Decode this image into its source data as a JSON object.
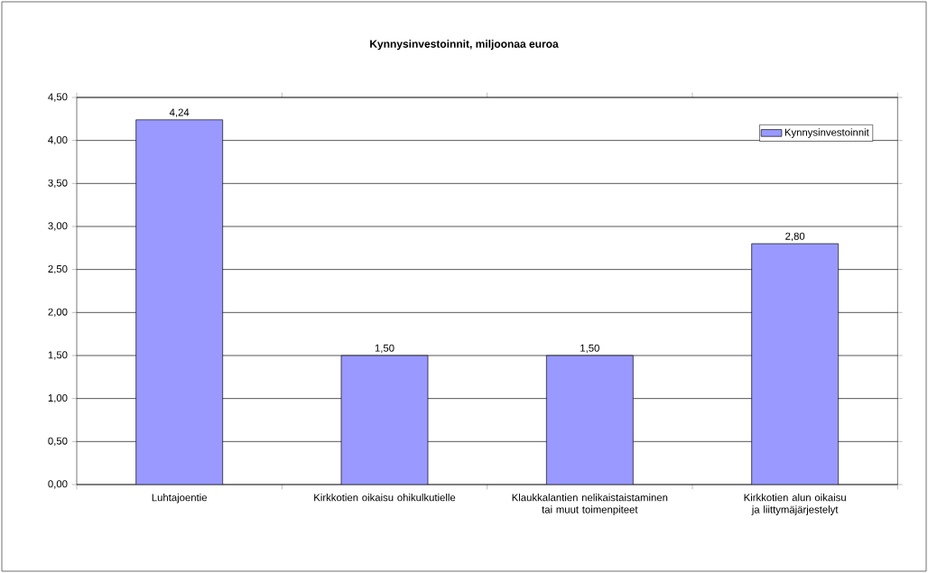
{
  "chart_data": {
    "type": "bar",
    "title": "Kynnysinvestoinnit, miljoonaa euroa",
    "categories": [
      "Luhtajoentie",
      "Kirkkotien oikaisu ohikulkutielle",
      "Klaukkalantien nelikaistaistaminen tai muut toimenpiteet",
      "Kirkkotien alun oikaisu ja liittymäjärjestelyt"
    ],
    "series": [
      {
        "name": "Kynnysinvestoinnit",
        "color": "#9999ff",
        "values": [
          4.24,
          1.5,
          1.5,
          2.8
        ],
        "value_labels": [
          "4,24",
          "1,50",
          "1,50",
          "2,80"
        ]
      }
    ],
    "ylim": [
      0,
      4.5
    ],
    "yticks": [
      {
        "value": 0,
        "label": "0,00"
      },
      {
        "value": 0.5,
        "label": "0,50"
      },
      {
        "value": 1,
        "label": "1,00"
      },
      {
        "value": 1.5,
        "label": "1,50"
      },
      {
        "value": 2,
        "label": "2,00"
      },
      {
        "value": 2.5,
        "label": "2,50"
      },
      {
        "value": 3,
        "label": "3,00"
      },
      {
        "value": 3.5,
        "label": "3,50"
      },
      {
        "value": 4,
        "label": "4,00"
      },
      {
        "value": 4.5,
        "label": "4,50"
      }
    ],
    "grid": "y",
    "legend": "top right"
  }
}
